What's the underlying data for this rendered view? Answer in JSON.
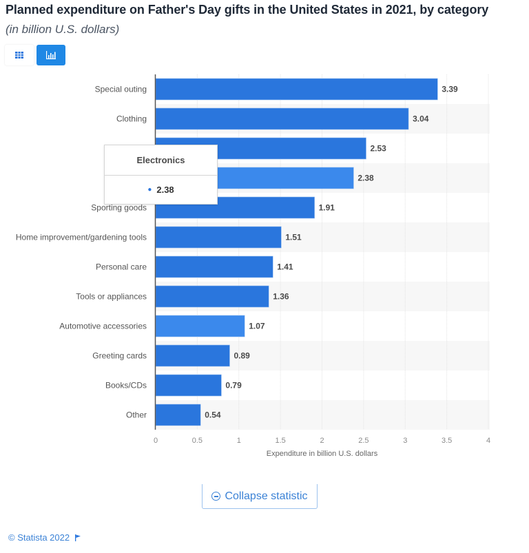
{
  "header": {
    "title": "Planned expenditure on Father's Day gifts in the United States in 2021, by category",
    "subtitle": "(in billion U.S. dollars)"
  },
  "view_toggle": {
    "table_icon": "table-icon",
    "chart_icon": "bar-chart-icon",
    "active": "chart"
  },
  "colors": {
    "bar": "#2a76dd",
    "bar_highlight": "#3b89ec",
    "accent": "#1f88e5",
    "band": "#f7f7f7"
  },
  "tooltip": {
    "category": "Electronics",
    "value": "2.38"
  },
  "chart_data": {
    "type": "bar",
    "orientation": "horizontal",
    "title": "Planned expenditure on Father's Day gifts in the United States in 2021, by category",
    "subtitle": "(in billion U.S. dollars)",
    "xlabel": "Expenditure in billion U.S. dollars",
    "ylabel": "",
    "xlim": [
      0,
      4
    ],
    "xticks": [
      "0",
      "0.5",
      "1",
      "1.5",
      "2",
      "2.5",
      "3",
      "3.5",
      "4"
    ],
    "grid": true,
    "categories": [
      "Special outing",
      "Clothing",
      "",
      "Electronics",
      "Sporting goods",
      "Home improvement/gardening tools",
      "Personal care",
      "Tools or appliances",
      "Automotive accessories",
      "Greeting cards",
      "Books/CDs",
      "Other"
    ],
    "category_label_visible": [
      true,
      true,
      false,
      false,
      true,
      true,
      true,
      true,
      true,
      true,
      true,
      true
    ],
    "values": [
      3.39,
      3.04,
      2.53,
      2.38,
      1.91,
      1.51,
      1.41,
      1.36,
      1.07,
      0.89,
      0.79,
      0.54
    ],
    "value_labels": [
      "3.39",
      "3.04",
      "2.53",
      "2.38",
      "1.91",
      "1.51",
      "1.41",
      "1.36",
      "1.07",
      "0.89",
      "0.79",
      "0.54"
    ],
    "highlighted": [
      false,
      false,
      false,
      true,
      false,
      false,
      false,
      false,
      true,
      false,
      false,
      false
    ]
  },
  "actions": {
    "collapse_label": "Collapse statistic"
  },
  "footer": {
    "copyright": "© Statista 2022",
    "flag_icon": "flag-icon"
  }
}
